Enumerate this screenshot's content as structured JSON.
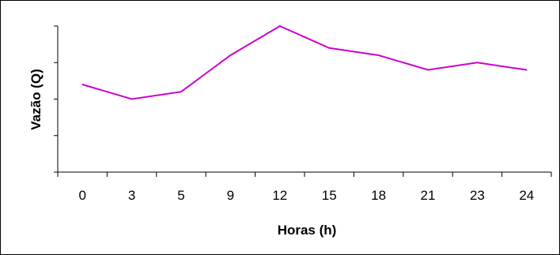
{
  "chart_data": {
    "type": "line",
    "title": "",
    "xlabel": "Horas (h)",
    "ylabel": "Vazão (Q)",
    "categories": [
      "0",
      "3",
      "5",
      "9",
      "12",
      "15",
      "18",
      "21",
      "23",
      "24"
    ],
    "series": [
      {
        "color": "#cc00cc",
        "values": [
          2.4,
          2.0,
          2.2,
          3.2,
          4.0,
          3.4,
          3.2,
          2.8,
          3.0,
          2.8
        ]
      }
    ],
    "ylim": [
      0,
      4.0
    ],
    "y_ticks": [
      0,
      1,
      2,
      3,
      4
    ],
    "y_tick_labels_shown": false,
    "grid": false,
    "legend": "none"
  }
}
